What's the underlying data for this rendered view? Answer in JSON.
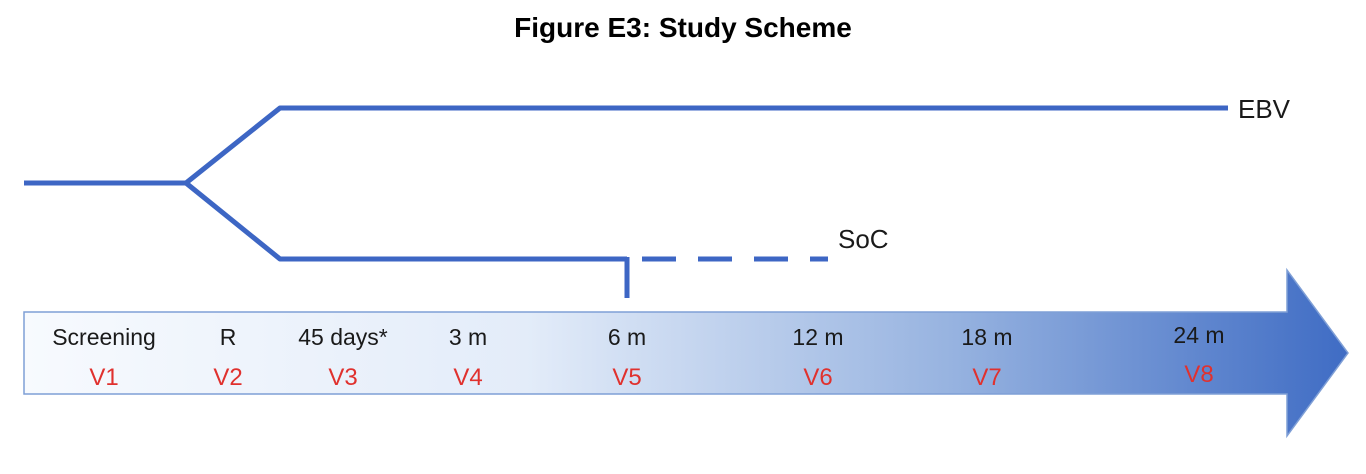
{
  "title": "Figure E3: Study Scheme",
  "arms": {
    "upper": "EBV",
    "lower": "SoC"
  },
  "timeline": {
    "points": [
      {
        "time": "Screening",
        "visit": "V1"
      },
      {
        "time": "R",
        "visit": "V2"
      },
      {
        "time": "45 days*",
        "visit": "V3"
      },
      {
        "time": "3 m",
        "visit": "V4"
      },
      {
        "time": "6 m",
        "visit": "V5"
      },
      {
        "time": "12 m",
        "visit": "V6"
      },
      {
        "time": "18 m",
        "visit": "V7"
      },
      {
        "time": "24 m",
        "visit": "V8"
      }
    ]
  },
  "colors": {
    "line": "#3d66c4",
    "visit_text": "#e0312e",
    "arrow_light": "#f4f8fe",
    "arrow_dark": "#3f6cc4"
  }
}
